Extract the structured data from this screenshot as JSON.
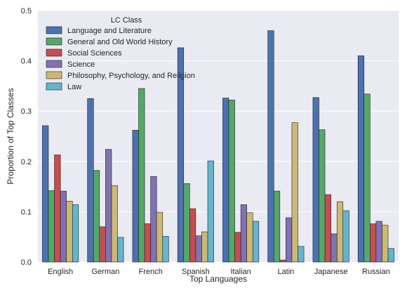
{
  "chart_data": {
    "type": "bar",
    "xlabel": "Top Languages",
    "ylabel": "Proportion of Top Classes",
    "ylim": [
      0,
      0.5
    ],
    "yticks": [
      "0.0",
      "0.1",
      "0.2",
      "0.3",
      "0.4",
      "0.5"
    ],
    "grid": true,
    "legend": {
      "title": "LC Class",
      "placement": "top-left"
    },
    "categories": [
      "English",
      "German",
      "French",
      "Spanish",
      "Italian",
      "Latin",
      "Japanese",
      "Russian"
    ],
    "series": [
      {
        "name": "Language and Literature",
        "color": "#4c72b0",
        "values": [
          0.271,
          0.325,
          0.262,
          0.426,
          0.326,
          0.46,
          0.327,
          0.41
        ]
      },
      {
        "name": "General and Old World History",
        "color": "#55a868",
        "values": [
          0.142,
          0.182,
          0.345,
          0.156,
          0.322,
          0.141,
          0.263,
          0.334
        ]
      },
      {
        "name": "Social Sciences",
        "color": "#c44e52",
        "values": [
          0.213,
          0.07,
          0.076,
          0.106,
          0.059,
          0.004,
          0.134,
          0.076
        ]
      },
      {
        "name": "Science",
        "color": "#8172b2",
        "values": [
          0.141,
          0.224,
          0.17,
          0.052,
          0.114,
          0.088,
          0.056,
          0.081
        ]
      },
      {
        "name": "Philosophy, Psychology, and Religion",
        "color": "#ccb974",
        "values": [
          0.121,
          0.152,
          0.099,
          0.06,
          0.098,
          0.277,
          0.12,
          0.073
        ]
      },
      {
        "name": "Law",
        "color": "#64b5cd",
        "values": [
          0.114,
          0.049,
          0.051,
          0.201,
          0.081,
          0.031,
          0.102,
          0.027
        ]
      }
    ]
  },
  "colors": {
    "plot_background": "#eaeaf2",
    "grid": "#ffffff"
  }
}
